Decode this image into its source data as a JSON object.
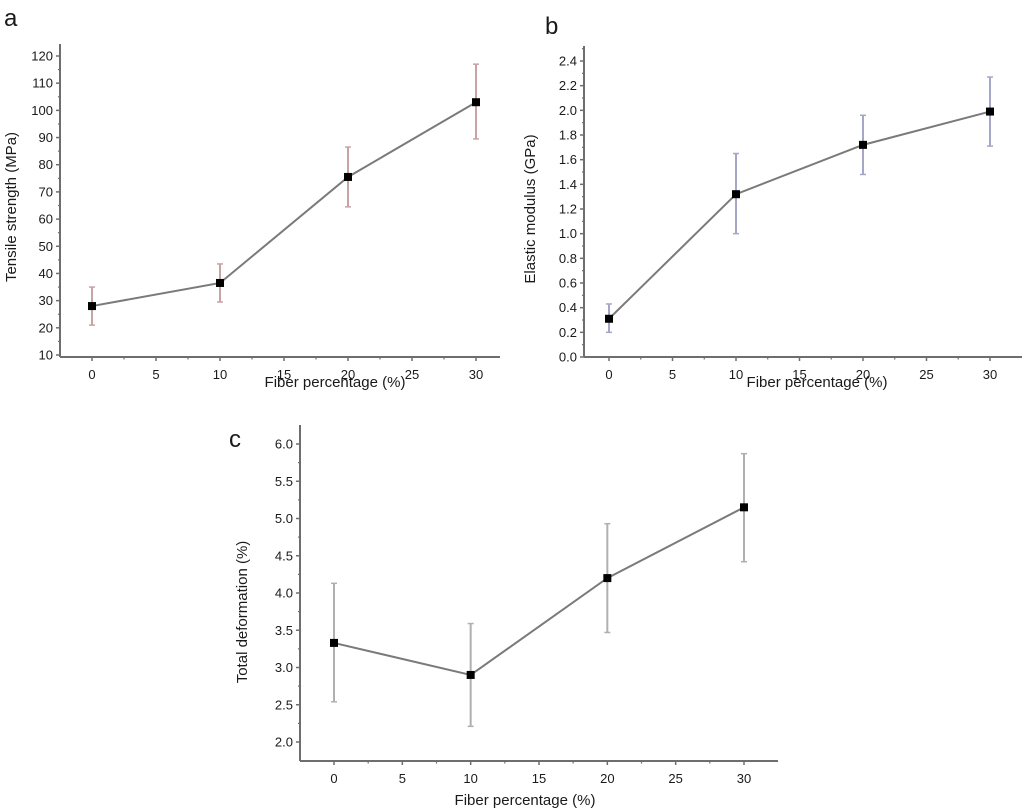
{
  "chart_data": [
    {
      "id": "a",
      "type": "line",
      "panel_label": "a",
      "xlabel": "Fiber percentage (%)",
      "ylabel": "Tensile strength (MPa)",
      "xlim": [
        -2.5,
        32.5
      ],
      "ylim": [
        10,
        123
      ],
      "xticks": [
        0,
        5,
        10,
        15,
        20,
        25,
        30
      ],
      "yticks": [
        10,
        20,
        30,
        40,
        50,
        60,
        70,
        80,
        90,
        100,
        110,
        120
      ],
      "ytick_decimals": 0,
      "grid": false,
      "error_bar_color": "#c9a3a3",
      "series": [
        {
          "name": "Tensile strength",
          "x": [
            0,
            10,
            20,
            30
          ],
          "y": [
            28,
            36.5,
            75.5,
            103
          ],
          "error_low": [
            21,
            29.5,
            64.5,
            89.5
          ],
          "error_high": [
            35,
            43.5,
            86.5,
            117
          ]
        }
      ]
    },
    {
      "id": "b",
      "type": "line",
      "panel_label": "b",
      "xlabel": "Fiber percentage (%)",
      "ylabel": "Elastic modulus (GPa)",
      "xlim": [
        -2.5,
        32.5
      ],
      "ylim": [
        0,
        2.5
      ],
      "xticks": [
        0,
        5,
        10,
        15,
        20,
        25,
        30
      ],
      "yticks": [
        0.0,
        0.2,
        0.4,
        0.6,
        0.8,
        1.0,
        1.2,
        1.4,
        1.6,
        1.8,
        2.0,
        2.2,
        2.4
      ],
      "ytick_decimals": 1,
      "grid": false,
      "error_bar_color": "#a6a6c9",
      "series": [
        {
          "name": "Elastic modulus",
          "x": [
            0,
            10,
            20,
            30
          ],
          "y": [
            0.31,
            1.32,
            1.72,
            1.99
          ],
          "error_low": [
            0.2,
            1.0,
            1.48,
            1.71
          ],
          "error_high": [
            0.43,
            1.65,
            1.96,
            2.27
          ]
        }
      ]
    },
    {
      "id": "c",
      "type": "line",
      "panel_label": "c",
      "xlabel": "Fiber percentage (%)",
      "ylabel": "Total deformation (%)",
      "xlim": [
        -2.5,
        32.5
      ],
      "ylim": [
        1.75,
        6.25
      ],
      "xticks": [
        0,
        5,
        10,
        15,
        20,
        25,
        30
      ],
      "yticks": [
        2.0,
        2.5,
        3.0,
        3.5,
        4.0,
        4.5,
        5.0,
        5.5,
        6.0
      ],
      "ytick_decimals": 1,
      "grid": false,
      "error_bar_color": "#b0b0b0",
      "series": [
        {
          "name": "Total deformation",
          "x": [
            0,
            10,
            20,
            30
          ],
          "y": [
            3.33,
            2.9,
            4.2,
            5.15
          ],
          "error_low": [
            2.54,
            2.21,
            3.47,
            4.42
          ],
          "error_high": [
            4.13,
            3.59,
            4.93,
            5.87
          ]
        }
      ]
    }
  ],
  "colors": {
    "line": "#7a7a7a",
    "marker": "#000000",
    "axis": "#6e6e6e",
    "text": "#1a1a1a"
  }
}
